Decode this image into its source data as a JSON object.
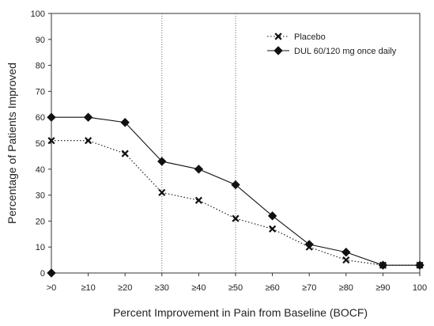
{
  "chart_data": {
    "type": "line",
    "title": "",
    "xlabel": "Percent Improvement in Pain from Baseline (BOCF)",
    "ylabel": "Percentage of Patients Improved",
    "categories": [
      ">0",
      "≥10",
      "≥20",
      "≥30",
      "≥40",
      "≥50",
      "≥60",
      "≥70",
      "≥80",
      "≥90",
      "100"
    ],
    "ylim": [
      0,
      100
    ],
    "yticks": [
      "0",
      "10",
      "20",
      "30",
      "40",
      "50",
      "60",
      "70",
      "80",
      "90",
      "100"
    ],
    "reference_lines_at": [
      "≥30",
      "≥50"
    ],
    "grid": false,
    "legend_position": "top-right",
    "series": [
      {
        "name": "Placebo",
        "marker": "x",
        "line_style": "dotted",
        "values": [
          51,
          51,
          46,
          31,
          28,
          21,
          17,
          10,
          5,
          3,
          3
        ]
      },
      {
        "name": "DUL 60/120 mg once daily",
        "marker": "diamond",
        "line_style": "solid",
        "values": [
          60,
          60,
          58,
          43,
          40,
          34,
          22,
          11,
          8,
          3,
          3
        ]
      }
    ],
    "extra_points": [
      {
        "category": ">0",
        "value": 0,
        "marker": "diamond"
      }
    ]
  }
}
